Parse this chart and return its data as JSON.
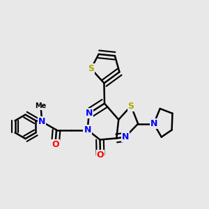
{
  "background_color": "#e8e8e8",
  "bond_color": "#000000",
  "bond_width": 1.8,
  "atom_colors": {
    "N": "#0000ff",
    "O": "#ff0000",
    "S": "#aaaa00"
  },
  "font_size_atoms": 9
}
